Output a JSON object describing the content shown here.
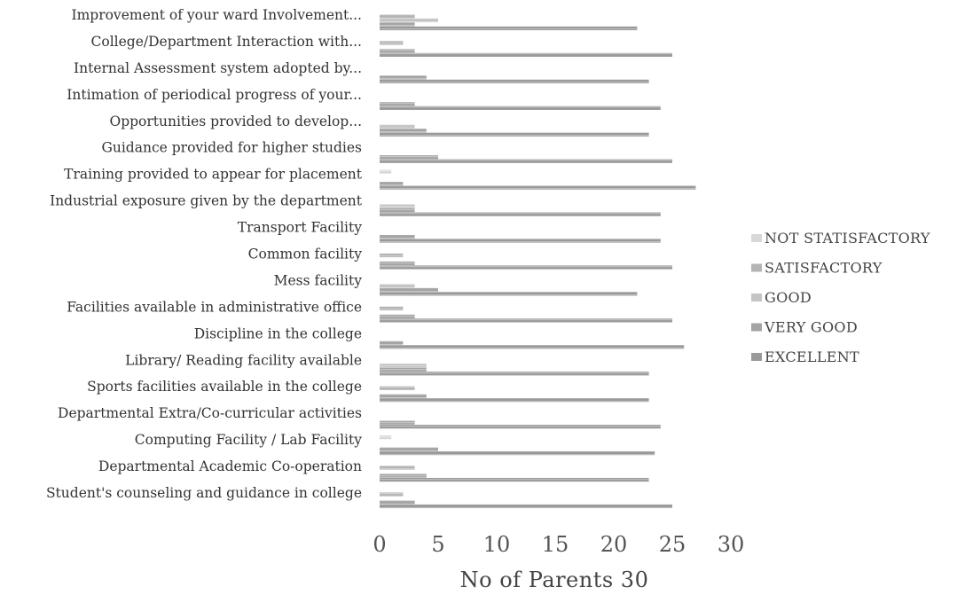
{
  "chart_data": {
    "type": "bar",
    "orientation": "horizontal",
    "xlabel": "No of Parents 30",
    "xlim": [
      0,
      30
    ],
    "xticks": [
      0,
      5,
      10,
      15,
      20,
      25,
      30
    ],
    "grid": false,
    "legend_position": "right",
    "categories": [
      "Student's counseling and guidance in college",
      "Departmental Academic Co-operation",
      "Computing Facility / Lab Facility",
      "Departmental Extra/Co-curricular activities",
      "Sports facilities available in the college",
      "Library/ Reading facility available",
      "Discipline in the college",
      "Facilities available in administrative office",
      "Mess facility",
      "Common facility",
      "Transport Facility",
      "Industrial exposure given by the department",
      "Training provided to appear for placement",
      "Guidance provided for higher studies",
      "Opportunities provided to develop...",
      "Intimation of periodical progress of your...",
      "Internal Assessment system adopted by...",
      "College/Department Interaction with...",
      "Improvement of your ward Involvement..."
    ],
    "series": [
      {
        "name": "NOT STATISFACTORY",
        "color": "#d8d8d8",
        "values": [
          0,
          0,
          1,
          0,
          0,
          0,
          0,
          0,
          0,
          0,
          0,
          0,
          1,
          0,
          0,
          0,
          0,
          0,
          0
        ]
      },
      {
        "name": "SATISFACTORY",
        "color": "#b4b4b4",
        "values": [
          2,
          3,
          0,
          0,
          3,
          0,
          0,
          2,
          0,
          2,
          0,
          0,
          0,
          0,
          0,
          0,
          0,
          2,
          3
        ]
      },
      {
        "name": "GOOD",
        "color": "#c4c4c4",
        "values": [
          0,
          0,
          0,
          0,
          0,
          4,
          0,
          0,
          3,
          0,
          0,
          3,
          0,
          0,
          3,
          0,
          0,
          0,
          5
        ]
      },
      {
        "name": "VERY GOOD",
        "color": "#a4a4a4",
        "values": [
          3,
          4,
          5,
          3,
          4,
          4,
          2,
          3,
          5,
          3,
          3,
          3,
          2,
          5,
          4,
          3,
          4,
          3,
          3
        ]
      },
      {
        "name": "EXCELLENT",
        "color": "#9a9a9a",
        "values": [
          25,
          23,
          23.5,
          24,
          23,
          23,
          26,
          25,
          22,
          25,
          24,
          24,
          27,
          25,
          23,
          24,
          23,
          25,
          22
        ]
      }
    ]
  }
}
